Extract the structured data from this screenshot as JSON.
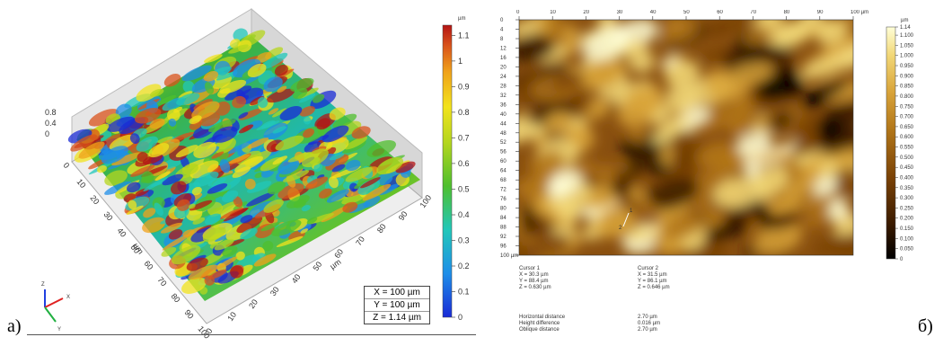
{
  "panel_a": {
    "letter": "а)",
    "height_unit": "µm",
    "colorbar_ticks": [
      "1.1",
      "1",
      "0.9",
      "0.8",
      "0.7",
      "0.6",
      "0.5",
      "0.4",
      "0.3",
      "0.2",
      "0.1",
      "0"
    ],
    "z_axis_ticks": [
      "0.8",
      "0.4",
      "0"
    ],
    "x_axis_ticks": [
      "0",
      "10",
      "20",
      "30",
      "40",
      "50",
      "60",
      "70",
      "80",
      "90",
      "100"
    ],
    "y_axis_ticks": [
      "0",
      "10",
      "20",
      "30",
      "40",
      "50",
      "60",
      "70",
      "80",
      "90",
      "100"
    ],
    "axis_unit": "µm",
    "dimensions": [
      "X = 100 µm",
      "Y = 100 µm",
      "Z = 1.14 µm"
    ],
    "orientation_axes": [
      "X",
      "Y",
      "Z"
    ],
    "colormap": [
      "#1a2bd6",
      "#1e8ee8",
      "#22c7b9",
      "#4fbf2e",
      "#b5d61e",
      "#f2e31c",
      "#f0a21a",
      "#d9531b",
      "#b41414"
    ]
  },
  "panel_b": {
    "letter": "б)",
    "top_axis_ticks": [
      "0",
      "10",
      "20",
      "30",
      "40",
      "50",
      "60",
      "70",
      "80",
      "90",
      "100 µm"
    ],
    "left_axis_ticks": [
      "0",
      "4",
      "8",
      "12",
      "16",
      "20",
      "24",
      "28",
      "32",
      "36",
      "40",
      "44",
      "48",
      "52",
      "56",
      "60",
      "64",
      "68",
      "72",
      "76",
      "80",
      "84",
      "88",
      "92",
      "96",
      "100 µm"
    ],
    "colorbar_unit": "µm",
    "colorbar_ticks": [
      "1.14",
      "1.100",
      "1.050",
      "1.000",
      "0.950",
      "0.900",
      "0.850",
      "0.800",
      "0.750",
      "0.700",
      "0.650",
      "0.600",
      "0.550",
      "0.500",
      "0.450",
      "0.400",
      "0.350",
      "0.300",
      "0.250",
      "0.200",
      "0.150",
      "0.100",
      "0.050",
      "0"
    ],
    "cursor_1": {
      "title": "Cursor 1",
      "x": "X = 30.3 µm",
      "y": "Y = 88.4 µm",
      "z": "Z = 0.630 µm"
    },
    "cursor_2": {
      "title": "Cursor 2",
      "x": "X = 31.5 µm",
      "y": "Y = 86.1 µm",
      "z": "Z = 0.646 µm"
    },
    "measurements": {
      "labels": [
        "Horizontal distance",
        "Height difference",
        "Oblique distance"
      ],
      "values": [
        "2.70 µm",
        "0.016 µm",
        "2.70 µm"
      ]
    },
    "cursor_markers": [
      "1",
      "2"
    ],
    "colormap": [
      "#000000",
      "#3a1a00",
      "#7a4206",
      "#b07418",
      "#d9a43a",
      "#f2d878",
      "#ffffd8"
    ]
  }
}
